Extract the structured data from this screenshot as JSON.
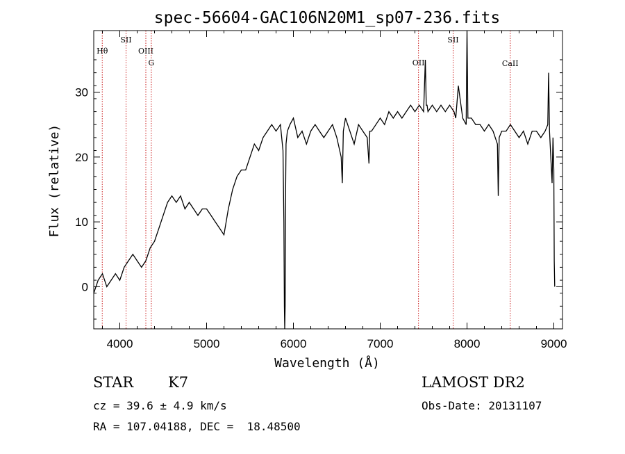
{
  "chart_data": {
    "type": "line",
    "title": "spec-56604-GAC106N20M1_sp07-236.fits",
    "xlabel": "Wavelength (Å)",
    "ylabel": "Flux (relative)",
    "xlim": [
      3700,
      9100
    ],
    "ylim": [
      -6.5,
      39.5
    ],
    "xticks": [
      "4000",
      "5000",
      "6000",
      "7000",
      "8000",
      "9000"
    ],
    "xtick_values": [
      4000,
      5000,
      6000,
      7000,
      8000,
      9000
    ],
    "yticks": [
      "0",
      "10",
      "20",
      "30"
    ],
    "ytick_values": [
      0,
      10,
      20,
      30
    ],
    "grid": false,
    "series": [
      {
        "x": [
          3700,
          3750,
          3800,
          3850,
          3900,
          3950,
          4000,
          4050,
          4100,
          4150,
          4200,
          4250,
          4300,
          4350,
          4400,
          4450,
          4500,
          4550,
          4600,
          4650,
          4700,
          4750,
          4800,
          4850,
          4900,
          4950,
          5000,
          5050,
          5100,
          5150,
          5200,
          5250,
          5300,
          5350,
          5400,
          5450,
          5500,
          5550,
          5600,
          5650,
          5700,
          5750,
          5800,
          5850,
          5880,
          5890,
          5896,
          5900,
          5905,
          5910,
          5915,
          5930,
          5960,
          6000,
          6050,
          6100,
          6150,
          6200,
          6250,
          6300,
          6350,
          6400,
          6450,
          6500,
          6550,
          6563,
          6575,
          6600,
          6650,
          6700,
          6750,
          6800,
          6850,
          6870,
          6880,
          6900,
          6950,
          7000,
          7050,
          7100,
          7150,
          7200,
          7250,
          7300,
          7350,
          7400,
          7450,
          7500,
          7520,
          7530,
          7540,
          7550,
          7600,
          7650,
          7700,
          7750,
          7800,
          7850,
          7870,
          7900,
          7950,
          7990,
          8000,
          8010,
          8050,
          8100,
          8150,
          8200,
          8250,
          8300,
          8350,
          8360,
          8370,
          8400,
          8450,
          8500,
          8550,
          8600,
          8650,
          8700,
          8750,
          8800,
          8850,
          8900,
          8930,
          8940,
          8950,
          8980,
          8990,
          9000,
          9005,
          9010
        ],
        "y": [
          -1,
          1,
          2,
          0,
          1,
          2,
          1,
          3,
          4,
          5,
          4,
          3,
          4,
          6,
          7,
          9,
          11,
          13,
          14,
          13,
          14,
          12,
          13,
          12,
          11,
          12,
          12,
          11,
          10,
          9,
          8,
          12,
          15,
          17,
          18,
          18,
          20,
          22,
          21,
          23,
          24,
          25,
          24,
          25,
          21,
          10,
          -3,
          -6.5,
          -3,
          15,
          22,
          24,
          25,
          26,
          23,
          24,
          22,
          24,
          25,
          24,
          23,
          24,
          25,
          23,
          20,
          16,
          24,
          26,
          24,
          22,
          25,
          24,
          23,
          19,
          24,
          24,
          25,
          26,
          25,
          27,
          26,
          27,
          26,
          27,
          28,
          27,
          28,
          27,
          35,
          28,
          28,
          27,
          28,
          27,
          28,
          27,
          28,
          27,
          26,
          31,
          26,
          25,
          39.5,
          26,
          26,
          25,
          25,
          24,
          25,
          24,
          22,
          14,
          23,
          24,
          24,
          25,
          24,
          23,
          24,
          22,
          24,
          24,
          23,
          24,
          25,
          33,
          24,
          16,
          23,
          18,
          4,
          0
        ]
      }
    ],
    "line_markers": [
      {
        "label": "Hθ",
        "x": 3798
      },
      {
        "label": "SII",
        "x": 4072
      },
      {
        "label": "OIII",
        "x": 4300
      },
      {
        "label": "G",
        "x": 4363
      },
      {
        "label": "OII",
        "x": 7441
      },
      {
        "label": "SII",
        "x": 7840
      },
      {
        "label": "CaII",
        "x": 8498
      }
    ],
    "marker_color": "#cc2222"
  },
  "info": {
    "class": "STAR",
    "subclass": "K7",
    "survey": "LAMOST DR2",
    "cz": "cz = 39.6 ± 4.9 km/s",
    "obs_date": "Obs-Date: 20131107",
    "coords": "RA = 107.04188, DEC =  18.48500"
  }
}
